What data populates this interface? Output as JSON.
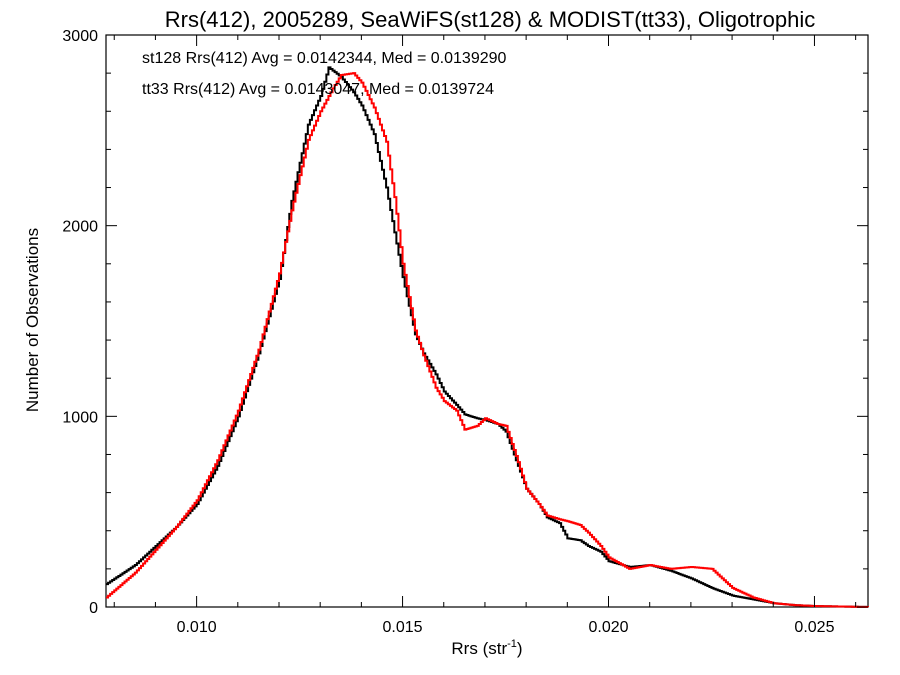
{
  "chart_data": {
    "type": "line",
    "title": "Rrs(412), 2005289, SeaWiFS(st128) & MODIST(tt33), Oligotrophic",
    "xlabel": "Rrs (str",
    "xlabel_sup": "-1",
    "xlabel_close": ")",
    "ylabel": "Number of Observations",
    "xlim": [
      0.0078,
      0.0263
    ],
    "ylim": [
      0,
      3000
    ],
    "x_ticks": [
      {
        "value": 0.01,
        "label": "0.010"
      },
      {
        "value": 0.015,
        "label": "0.015"
      },
      {
        "value": 0.02,
        "label": "0.020"
      },
      {
        "value": 0.025,
        "label": "0.025"
      }
    ],
    "y_ticks": [
      {
        "value": 0,
        "label": "0"
      },
      {
        "value": 1000,
        "label": "1000"
      },
      {
        "value": 2000,
        "label": "2000"
      },
      {
        "value": 3000,
        "label": "3000"
      }
    ],
    "series": [
      {
        "name": "st128",
        "legend": "st128 Rrs(412) Avg = 0.0142344, Med = 0.0139290",
        "color": "#000000",
        "x": [
          0.0078,
          0.0085,
          0.009,
          0.0095,
          0.01,
          0.0105,
          0.011,
          0.0115,
          0.012,
          0.0123,
          0.0127,
          0.013,
          0.0132,
          0.0135,
          0.0138,
          0.014,
          0.0143,
          0.0146,
          0.015,
          0.0153,
          0.0155,
          0.0158,
          0.016,
          0.0163,
          0.0165,
          0.0168,
          0.017,
          0.0173,
          0.0175,
          0.0178,
          0.018,
          0.0183,
          0.0185,
          0.0188,
          0.019,
          0.0193,
          0.0195,
          0.0198,
          0.02,
          0.0205,
          0.021,
          0.0215,
          0.022,
          0.0225,
          0.023,
          0.0235,
          0.024,
          0.0245,
          0.025,
          0.0263
        ],
        "y": [
          120,
          220,
          320,
          420,
          540,
          740,
          1000,
          1330,
          1720,
          2130,
          2530,
          2680,
          2830,
          2780,
          2700,
          2630,
          2480,
          2200,
          1730,
          1430,
          1330,
          1220,
          1130,
          1060,
          1010,
          990,
          980,
          960,
          920,
          740,
          620,
          540,
          470,
          440,
          360,
          350,
          320,
          290,
          240,
          210,
          220,
          190,
          150,
          100,
          60,
          40,
          20,
          10,
          5,
          0
        ]
      },
      {
        "name": "tt33",
        "legend": "tt33 Rrs(412) Avg = 0.0143047, Med = 0.0139724",
        "color": "#ff0000",
        "x": [
          0.0078,
          0.0085,
          0.009,
          0.0095,
          0.01,
          0.0105,
          0.011,
          0.0115,
          0.012,
          0.0123,
          0.0127,
          0.013,
          0.0133,
          0.0135,
          0.0138,
          0.014,
          0.0143,
          0.0146,
          0.0148,
          0.015,
          0.0153,
          0.0155,
          0.0158,
          0.016,
          0.0163,
          0.0165,
          0.0168,
          0.017,
          0.0173,
          0.0175,
          0.0178,
          0.018,
          0.0183,
          0.0185,
          0.0188,
          0.019,
          0.0193,
          0.0195,
          0.0198,
          0.02,
          0.0205,
          0.021,
          0.0215,
          0.022,
          0.0225,
          0.023,
          0.0235,
          0.024,
          0.0245,
          0.025,
          0.0263
        ],
        "y": [
          50,
          180,
          300,
          420,
          560,
          770,
          1030,
          1350,
          1750,
          2080,
          2450,
          2600,
          2720,
          2790,
          2800,
          2750,
          2620,
          2440,
          2150,
          1800,
          1450,
          1320,
          1150,
          1080,
          1030,
          930,
          950,
          990,
          960,
          950,
          760,
          620,
          540,
          480,
          460,
          450,
          430,
          390,
          320,
          260,
          200,
          220,
          200,
          210,
          200,
          100,
          50,
          20,
          10,
          5,
          0
        ]
      }
    ],
    "grid": false,
    "legend_position": "top-left"
  }
}
